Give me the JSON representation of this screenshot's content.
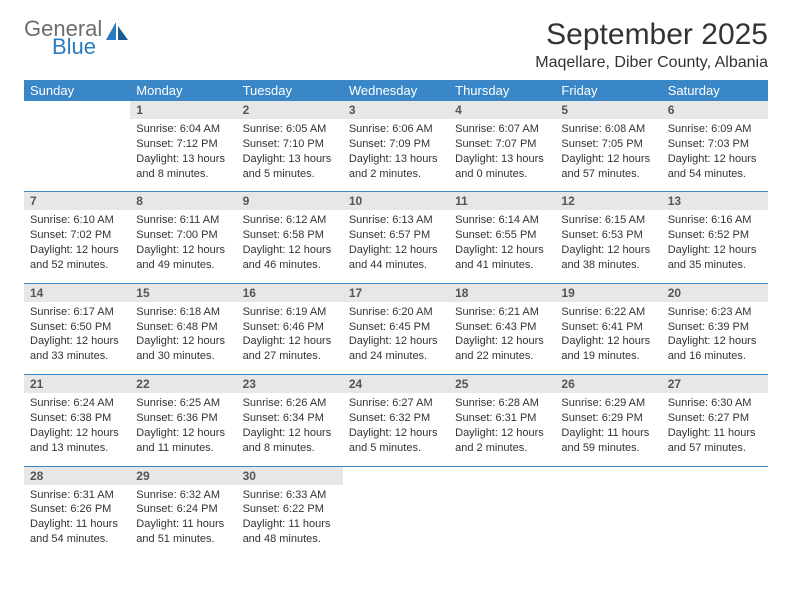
{
  "logo": {
    "line1": "General",
    "line2": "Blue"
  },
  "title": "September 2025",
  "location": "Maqellare, Diber County, Albania",
  "colors": {
    "headerBar": "#3a87c7",
    "dayNumBg": "#e7e7e7",
    "logoGray": "#6d6d6d",
    "logoBlue": "#2a7bbf",
    "text": "#333333"
  },
  "dayHeaders": [
    "Sunday",
    "Monday",
    "Tuesday",
    "Wednesday",
    "Thursday",
    "Friday",
    "Saturday"
  ],
  "weeks": [
    [
      null,
      {
        "n": "1",
        "sr": "6:04 AM",
        "ss": "7:12 PM",
        "dl": "13 hours and 8 minutes."
      },
      {
        "n": "2",
        "sr": "6:05 AM",
        "ss": "7:10 PM",
        "dl": "13 hours and 5 minutes."
      },
      {
        "n": "3",
        "sr": "6:06 AM",
        "ss": "7:09 PM",
        "dl": "13 hours and 2 minutes."
      },
      {
        "n": "4",
        "sr": "6:07 AM",
        "ss": "7:07 PM",
        "dl": "13 hours and 0 minutes."
      },
      {
        "n": "5",
        "sr": "6:08 AM",
        "ss": "7:05 PM",
        "dl": "12 hours and 57 minutes."
      },
      {
        "n": "6",
        "sr": "6:09 AM",
        "ss": "7:03 PM",
        "dl": "12 hours and 54 minutes."
      }
    ],
    [
      {
        "n": "7",
        "sr": "6:10 AM",
        "ss": "7:02 PM",
        "dl": "12 hours and 52 minutes."
      },
      {
        "n": "8",
        "sr": "6:11 AM",
        "ss": "7:00 PM",
        "dl": "12 hours and 49 minutes."
      },
      {
        "n": "9",
        "sr": "6:12 AM",
        "ss": "6:58 PM",
        "dl": "12 hours and 46 minutes."
      },
      {
        "n": "10",
        "sr": "6:13 AM",
        "ss": "6:57 PM",
        "dl": "12 hours and 44 minutes."
      },
      {
        "n": "11",
        "sr": "6:14 AM",
        "ss": "6:55 PM",
        "dl": "12 hours and 41 minutes."
      },
      {
        "n": "12",
        "sr": "6:15 AM",
        "ss": "6:53 PM",
        "dl": "12 hours and 38 minutes."
      },
      {
        "n": "13",
        "sr": "6:16 AM",
        "ss": "6:52 PM",
        "dl": "12 hours and 35 minutes."
      }
    ],
    [
      {
        "n": "14",
        "sr": "6:17 AM",
        "ss": "6:50 PM",
        "dl": "12 hours and 33 minutes."
      },
      {
        "n": "15",
        "sr": "6:18 AM",
        "ss": "6:48 PM",
        "dl": "12 hours and 30 minutes."
      },
      {
        "n": "16",
        "sr": "6:19 AM",
        "ss": "6:46 PM",
        "dl": "12 hours and 27 minutes."
      },
      {
        "n": "17",
        "sr": "6:20 AM",
        "ss": "6:45 PM",
        "dl": "12 hours and 24 minutes."
      },
      {
        "n": "18",
        "sr": "6:21 AM",
        "ss": "6:43 PM",
        "dl": "12 hours and 22 minutes."
      },
      {
        "n": "19",
        "sr": "6:22 AM",
        "ss": "6:41 PM",
        "dl": "12 hours and 19 minutes."
      },
      {
        "n": "20",
        "sr": "6:23 AM",
        "ss": "6:39 PM",
        "dl": "12 hours and 16 minutes."
      }
    ],
    [
      {
        "n": "21",
        "sr": "6:24 AM",
        "ss": "6:38 PM",
        "dl": "12 hours and 13 minutes."
      },
      {
        "n": "22",
        "sr": "6:25 AM",
        "ss": "6:36 PM",
        "dl": "12 hours and 11 minutes."
      },
      {
        "n": "23",
        "sr": "6:26 AM",
        "ss": "6:34 PM",
        "dl": "12 hours and 8 minutes."
      },
      {
        "n": "24",
        "sr": "6:27 AM",
        "ss": "6:32 PM",
        "dl": "12 hours and 5 minutes."
      },
      {
        "n": "25",
        "sr": "6:28 AM",
        "ss": "6:31 PM",
        "dl": "12 hours and 2 minutes."
      },
      {
        "n": "26",
        "sr": "6:29 AM",
        "ss": "6:29 PM",
        "dl": "11 hours and 59 minutes."
      },
      {
        "n": "27",
        "sr": "6:30 AM",
        "ss": "6:27 PM",
        "dl": "11 hours and 57 minutes."
      }
    ],
    [
      {
        "n": "28",
        "sr": "6:31 AM",
        "ss": "6:26 PM",
        "dl": "11 hours and 54 minutes."
      },
      {
        "n": "29",
        "sr": "6:32 AM",
        "ss": "6:24 PM",
        "dl": "11 hours and 51 minutes."
      },
      {
        "n": "30",
        "sr": "6:33 AM",
        "ss": "6:22 PM",
        "dl": "11 hours and 48 minutes."
      },
      null,
      null,
      null,
      null
    ]
  ],
  "labels": {
    "sunrise": "Sunrise: ",
    "sunset": "Sunset: ",
    "daylight": "Daylight: "
  }
}
